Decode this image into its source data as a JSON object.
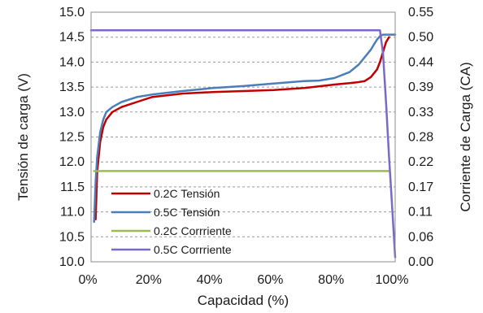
{
  "chart_data": {
    "type": "line",
    "xlabel": "Capacidad (%)",
    "ylabel": "Tensión de carga (V)",
    "y2label": "Corriente de Carga (CA)",
    "xlim": [
      0,
      100
    ],
    "ylim": [
      10.0,
      15.0
    ],
    "y2lim": [
      0.0,
      0.55
    ],
    "x_ticks": [
      "0%",
      "20%",
      "40%",
      "60%",
      "80%",
      "100%"
    ],
    "y_ticks": [
      "10.0",
      "10.5",
      "11.0",
      "11.5",
      "12.0",
      "12.5",
      "13.0",
      "13.5",
      "14.0",
      "14.5",
      "15.0"
    ],
    "y2_ticks": [
      "0.00",
      "0.06",
      "0.11",
      "0.17",
      "0.22",
      "0.28",
      "0.33",
      "0.39",
      "0.44",
      "0.50",
      "0.55"
    ],
    "grid": "horizontal dashed",
    "legend_position": "lower-left",
    "series": [
      {
        "name": "0.2C Tensión",
        "axis": "left",
        "color": "#c00000",
        "x": [
          1.5,
          2,
          3,
          4,
          5,
          7,
          10,
          15,
          20,
          30,
          40,
          50,
          60,
          70,
          80,
          85,
          88,
          90,
          92,
          94,
          95,
          96,
          97,
          98
        ],
        "y": [
          10.85,
          11.8,
          12.4,
          12.7,
          12.85,
          13.0,
          13.1,
          13.2,
          13.3,
          13.37,
          13.4,
          13.42,
          13.44,
          13.48,
          13.55,
          13.58,
          13.6,
          13.62,
          13.7,
          13.85,
          14.0,
          14.2,
          14.4,
          14.5
        ]
      },
      {
        "name": "0.5C Tensión",
        "axis": "left",
        "color": "#4a7ebb",
        "x": [
          1,
          1.5,
          2,
          3,
          4,
          5,
          7,
          10,
          15,
          20,
          30,
          40,
          50,
          60,
          70,
          75,
          80,
          85,
          88,
          90,
          92,
          93,
          94,
          95,
          96,
          97,
          100
        ],
        "y": [
          10.8,
          11.6,
          12.1,
          12.6,
          12.85,
          13.0,
          13.1,
          13.2,
          13.3,
          13.35,
          13.42,
          13.48,
          13.52,
          13.57,
          13.62,
          13.63,
          13.68,
          13.8,
          13.95,
          14.1,
          14.25,
          14.35,
          14.45,
          14.52,
          14.55,
          14.55,
          14.55
        ]
      },
      {
        "name": "0.2C Corrriente",
        "axis": "right",
        "color": "#9bbb59",
        "x": [
          1,
          98
        ],
        "y": [
          0.2,
          0.2
        ]
      },
      {
        "name": "0.5C Corrriente",
        "axis": "right",
        "color": "#7b68c8",
        "x": [
          0,
          95,
          96,
          97,
          98,
          99,
          100
        ],
        "y": [
          0.51,
          0.51,
          0.46,
          0.35,
          0.23,
          0.12,
          0.01
        ]
      }
    ]
  }
}
